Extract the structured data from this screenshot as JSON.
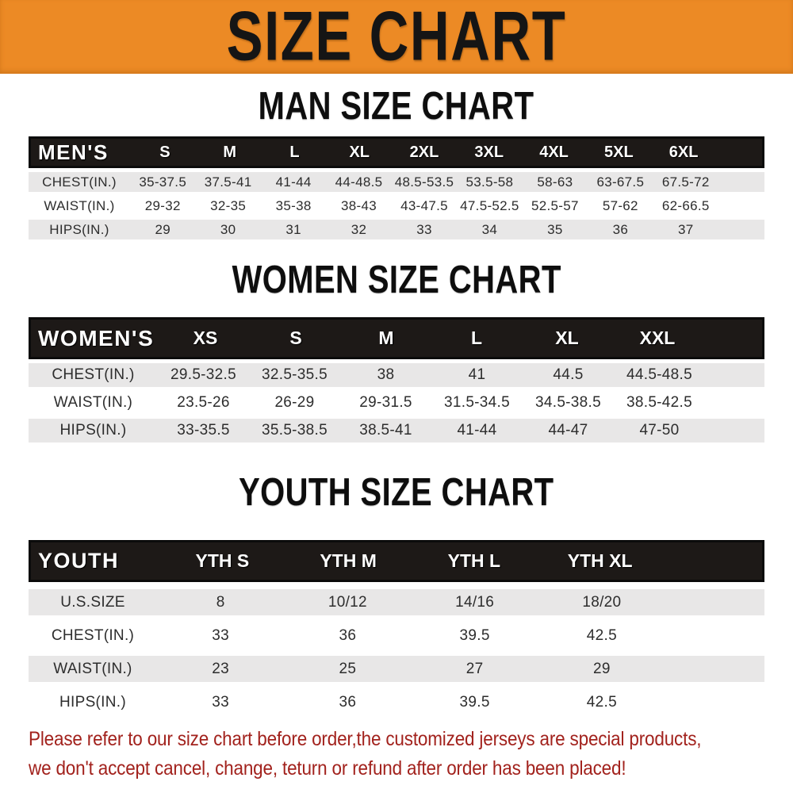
{
  "banner": {
    "title": "SIZE CHART",
    "background_color": "#ec8a25"
  },
  "sections": [
    {
      "heading": "MAN SIZE CHART",
      "header_label": "MEN'S",
      "columns": [
        "S",
        "M",
        "L",
        "XL",
        "2XL",
        "3XL",
        "4XL",
        "5XL",
        "6XL"
      ],
      "rows": [
        {
          "label": "CHEST(IN.)",
          "values": [
            "35-37.5",
            "37.5-41",
            "41-44",
            "44-48.5",
            "48.5-53.5",
            "53.5-58",
            "58-63",
            "63-67.5",
            "67.5-72"
          ]
        },
        {
          "label": "WAIST(IN.)",
          "values": [
            "29-32",
            "32-35",
            "35-38",
            "38-43",
            "43-47.5",
            "47.5-52.5",
            "52.5-57",
            "57-62",
            "62-66.5"
          ]
        },
        {
          "label": "HIPS(IN.)",
          "values": [
            "29",
            "30",
            "31",
            "32",
            "33",
            "34",
            "35",
            "36",
            "37"
          ]
        }
      ]
    },
    {
      "heading": "WOMEN SIZE CHART",
      "header_label": "WOMEN'S",
      "columns": [
        "XS",
        "S",
        "M",
        "L",
        "XL",
        "XXL"
      ],
      "rows": [
        {
          "label": "CHEST(IN.)",
          "values": [
            "29.5-32.5",
            "32.5-35.5",
            "38",
            "41",
            "44.5",
            "44.5-48.5"
          ]
        },
        {
          "label": "WAIST(IN.)",
          "values": [
            "23.5-26",
            "26-29",
            "29-31.5",
            "31.5-34.5",
            "34.5-38.5",
            "38.5-42.5"
          ]
        },
        {
          "label": "HIPS(IN.)",
          "values": [
            "33-35.5",
            "35.5-38.5",
            "38.5-41",
            "41-44",
            "44-47",
            "47-50"
          ]
        }
      ]
    },
    {
      "heading": "YOUTH SIZE CHART",
      "header_label": "YOUTH",
      "columns": [
        "YTH S",
        "YTH M",
        "YTH L",
        "YTH XL"
      ],
      "rows": [
        {
          "label": "U.S.SIZE",
          "values": [
            "8",
            "10/12",
            "14/16",
            "18/20"
          ]
        },
        {
          "label": "CHEST(IN.)",
          "values": [
            "33",
            "36",
            "39.5",
            "42.5"
          ]
        },
        {
          "label": "WAIST(IN.)",
          "values": [
            "23",
            "25",
            "27",
            "29"
          ]
        },
        {
          "label": "HIPS(IN.)",
          "values": [
            "33",
            "36",
            "39.5",
            "42.5"
          ]
        }
      ]
    }
  ],
  "footer": {
    "line1": "Please refer to our size chart before order,the customized jerseys are special products,",
    "line2": "we don't accept cancel, change, teturn or refund after order has been placed!",
    "text_color": "#a2221d"
  }
}
